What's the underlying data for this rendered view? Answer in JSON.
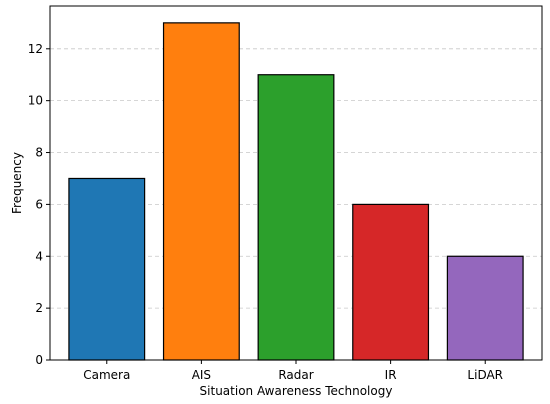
{
  "chart_data": {
    "type": "bar",
    "title": "",
    "xlabel": "Situation Awareness Technology",
    "ylabel": "Frequency",
    "categories": [
      "Camera",
      "AIS",
      "Radar",
      "IR",
      "LiDAR"
    ],
    "values": [
      7,
      13,
      11,
      6,
      4
    ],
    "colors": [
      "#1f77b4",
      "#ff7f0e",
      "#2ca02c",
      "#d62728",
      "#9467bd"
    ],
    "edge_color": "#000000",
    "ylim": [
      0,
      13.65
    ],
    "yticks": [
      0,
      2,
      4,
      6,
      8,
      10,
      12
    ],
    "grid": {
      "axis": "y",
      "style": "dashed",
      "color": "#c8c8c8"
    }
  }
}
